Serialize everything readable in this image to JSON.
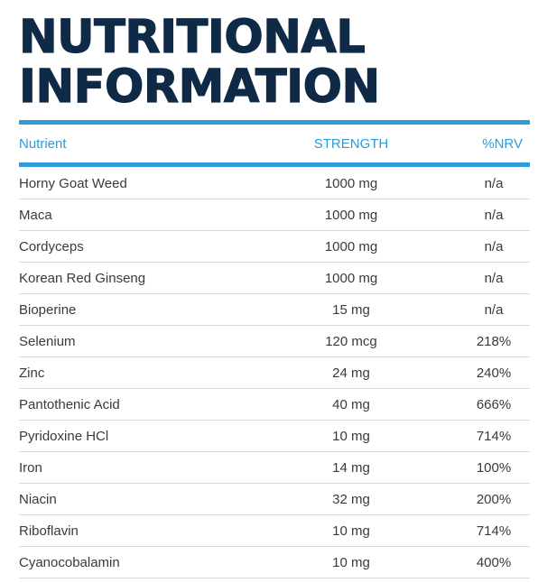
{
  "title": {
    "line1": "NUTRITIONAL",
    "line2": "INFORMATION"
  },
  "table": {
    "headers": {
      "nutrient": "Nutrient",
      "strength": "STRENGTH",
      "nrv": "%NRV"
    },
    "rows": [
      {
        "nutrient": "Horny Goat Weed",
        "strength": "1000 mg",
        "nrv": "n/a"
      },
      {
        "nutrient": "Maca",
        "strength": "1000 mg",
        "nrv": "n/a"
      },
      {
        "nutrient": "Cordyceps",
        "strength": "1000 mg",
        "nrv": "n/a"
      },
      {
        "nutrient": "Korean Red Ginseng",
        "strength": "1000 mg",
        "nrv": "n/a"
      },
      {
        "nutrient": "Bioperine",
        "strength": "15 mg",
        "nrv": "n/a"
      },
      {
        "nutrient": "Selenium",
        "strength": "120 mcg",
        "nrv": "218%"
      },
      {
        "nutrient": "Zinc",
        "strength": "24 mg",
        "nrv": "240%"
      },
      {
        "nutrient": "Pantothenic Acid",
        "strength": "40 mg",
        "nrv": "666%"
      },
      {
        "nutrient": "Pyridoxine HCl",
        "strength": "10 mg",
        "nrv": "714%"
      },
      {
        "nutrient": "Iron",
        "strength": "14 mg",
        "nrv": "100%"
      },
      {
        "nutrient": "Niacin",
        "strength": "32 mg",
        "nrv": "200%"
      },
      {
        "nutrient": "Riboflavin",
        "strength": "10 mg",
        "nrv": "714%"
      },
      {
        "nutrient": "Cyanocobalamin",
        "strength": "10 mg",
        "nrv": "400%"
      }
    ]
  },
  "colors": {
    "title": "#0f2a46",
    "accent": "#2e9bd6",
    "text": "#3a3a3a",
    "divider": "#d9d9d9"
  }
}
